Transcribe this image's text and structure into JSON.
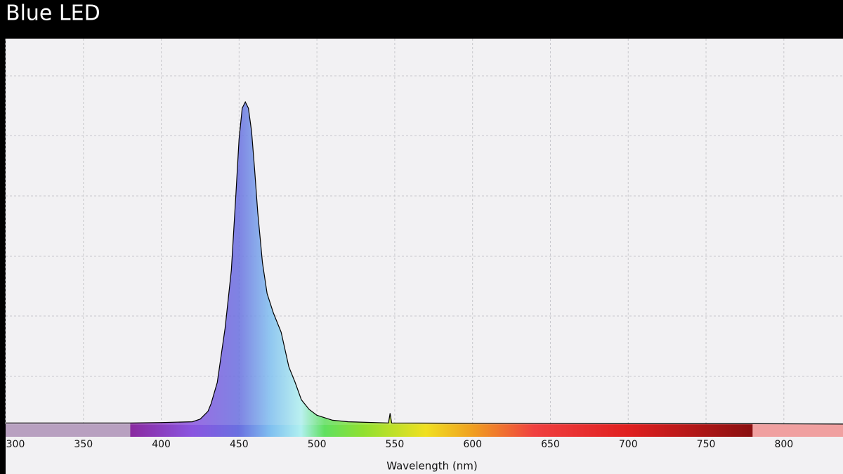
{
  "chart_data": {
    "type": "area",
    "title": "Blue LED",
    "x_label": "Wavelength (nm)",
    "x": [
      300,
      380,
      400,
      420,
      425,
      430,
      432,
      436,
      441,
      445,
      448,
      450,
      452,
      454,
      456,
      458,
      460,
      462,
      465,
      468,
      472,
      477,
      482,
      486,
      490,
      495,
      500,
      510,
      520,
      546,
      547,
      548,
      600,
      700,
      780,
      838
    ],
    "values": [
      0.005,
      0.005,
      0.006,
      0.008,
      0.015,
      0.035,
      0.055,
      0.11,
      0.25,
      0.4,
      0.6,
      0.74,
      0.82,
      0.836,
      0.82,
      0.76,
      0.66,
      0.55,
      0.42,
      0.34,
      0.29,
      0.24,
      0.15,
      0.11,
      0.065,
      0.04,
      0.025,
      0.012,
      0.008,
      0.005,
      0.03,
      0.005,
      0.004,
      0.003,
      0.003,
      0.002
    ],
    "color": "#000000",
    "xlim": [
      300,
      838
    ],
    "xticks": [
      300,
      350,
      400,
      450,
      500,
      550,
      600,
      650,
      700,
      750,
      800
    ],
    "ylim": [
      0,
      1
    ],
    "grid": true
  }
}
